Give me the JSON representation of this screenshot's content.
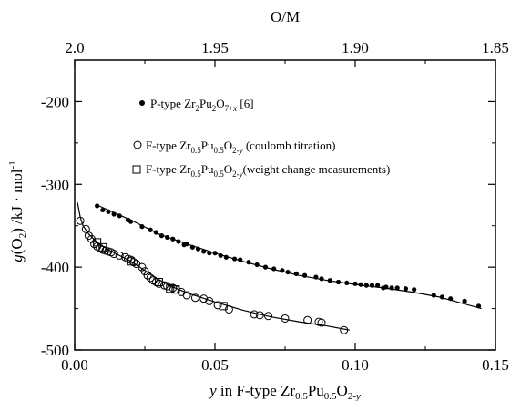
{
  "chart_data": {
    "type": "scatter",
    "x_bottom": {
      "label": "y  in F-type Zr0.5Pu0.5O2-y",
      "range": [
        0.0,
        0.15
      ],
      "ticks": [
        "0.00",
        "0.05",
        "0.10",
        "0.15"
      ],
      "tick_values": [
        0.0,
        0.05,
        0.1,
        0.15
      ]
    },
    "x_top": {
      "label": "O/M",
      "range": [
        2.0,
        1.85
      ],
      "ticks": [
        "2.0",
        "1.95",
        "1.90",
        "1.85"
      ],
      "tick_values": [
        2.0,
        1.95,
        1.9,
        1.85
      ]
    },
    "y": {
      "label": "g(O2) /kJ · mol-1",
      "range": [
        -500,
        -150
      ],
      "ticks": [
        "-500",
        "-400",
        "-300",
        "-200"
      ],
      "tick_values": [
        -500,
        -400,
        -300,
        -200
      ]
    },
    "legend": [
      {
        "marker": "filled-circle",
        "text": "P-type Zr2Pu2O7+x [6]"
      },
      {
        "marker": "open-circle",
        "text": "F-type Zr0.5Pu0.5O2-y (coulomb titration)"
      },
      {
        "marker": "open-square",
        "text": "F-type Zr0.5Pu0.5O2-y(weight change measurements)"
      }
    ],
    "legend_placement": "top-left",
    "grid": false,
    "series": [
      {
        "name": "P-type Zr2Pu2O7+x [6]",
        "marker": "filled-circle",
        "x": [
          0.008,
          0.01,
          0.012,
          0.014,
          0.016,
          0.019,
          0.02,
          0.024,
          0.027,
          0.029,
          0.031,
          0.033,
          0.035,
          0.037,
          0.039,
          0.04,
          0.042,
          0.044,
          0.046,
          0.048,
          0.05,
          0.052,
          0.054,
          0.057,
          0.059,
          0.062,
          0.065,
          0.068,
          0.071,
          0.074,
          0.076,
          0.079,
          0.082,
          0.086,
          0.088,
          0.091,
          0.094,
          0.097,
          0.1,
          0.102,
          0.104,
          0.106,
          0.108,
          0.11,
          0.111,
          0.113,
          0.115,
          0.118,
          0.121,
          0.128,
          0.131,
          0.134,
          0.139,
          0.144
        ],
        "y": [
          -326,
          -331,
          -333,
          -336,
          -338,
          -343,
          -345,
          -351,
          -355,
          -358,
          -362,
          -364,
          -366,
          -369,
          -373,
          -372,
          -376,
          -378,
          -381,
          -383,
          -383,
          -386,
          -388,
          -390,
          -391,
          -394,
          -397,
          -400,
          -402,
          -404,
          -406,
          -408,
          -410,
          -412,
          -414,
          -416,
          -418,
          -419,
          -420,
          -421,
          -422,
          -422,
          -422,
          -425,
          -424,
          -425,
          -425,
          -426,
          -427,
          -434,
          -436,
          -438,
          -441,
          -447
        ]
      },
      {
        "name": "F-type Zr0.5Pu0.5O2-y (coulomb titration)",
        "marker": "open-circle",
        "x": [
          0.002,
          0.004,
          0.005,
          0.006,
          0.007,
          0.008,
          0.009,
          0.01,
          0.011,
          0.012,
          0.013,
          0.014,
          0.016,
          0.018,
          0.019,
          0.02,
          0.021,
          0.022,
          0.024,
          0.025,
          0.026,
          0.027,
          0.028,
          0.029,
          0.03,
          0.032,
          0.033,
          0.035,
          0.036,
          0.038,
          0.04,
          0.043,
          0.046,
          0.048,
          0.051,
          0.055,
          0.064,
          0.066,
          0.069,
          0.075,
          0.083,
          0.087,
          0.088,
          0.096
        ],
        "y": [
          -344,
          -354,
          -362,
          -366,
          -372,
          -375,
          -377,
          -379,
          -380,
          -381,
          -382,
          -384,
          -386,
          -388,
          -390,
          -391,
          -394,
          -396,
          -400,
          -405,
          -410,
          -413,
          -416,
          -418,
          -420,
          -422,
          -423,
          -425,
          -427,
          -430,
          -434,
          -437,
          -438,
          -441,
          -446,
          -451,
          -457,
          -458,
          -459,
          -462,
          -464,
          -466,
          -467,
          -476
        ]
      },
      {
        "name": "F-type Zr0.5Pu0.5O2-y(weight change measurements)",
        "marker": "open-square",
        "x": [
          0.008,
          0.01,
          0.02,
          0.03,
          0.034,
          0.036,
          0.053
        ],
        "y": [
          -370,
          -376,
          -393,
          -418,
          -426,
          -427,
          -447
        ]
      },
      {
        "name": "",
        "marker": "line",
        "x": [
          0.008,
          0.02,
          0.03,
          0.04,
          0.05,
          0.06,
          0.07,
          0.08,
          0.09,
          0.1,
          0.11,
          0.12,
          0.13,
          0.145
        ],
        "y": [
          -325,
          -343,
          -360,
          -372,
          -383,
          -393,
          -402,
          -410,
          -416,
          -421,
          -425,
          -430,
          -436,
          -450
        ]
      },
      {
        "name": "",
        "marker": "line",
        "x": [
          0.001,
          0.002,
          0.003,
          0.005,
          0.008,
          0.012,
          0.016,
          0.02,
          0.025,
          0.03,
          0.035,
          0.04,
          0.05,
          0.06,
          0.07,
          0.08,
          0.09,
          0.098
        ],
        "y": [
          -322,
          -340,
          -350,
          -360,
          -370,
          -379,
          -386,
          -393,
          -404,
          -415,
          -424,
          -431,
          -442,
          -452,
          -460,
          -466,
          -471,
          -476
        ]
      }
    ]
  }
}
